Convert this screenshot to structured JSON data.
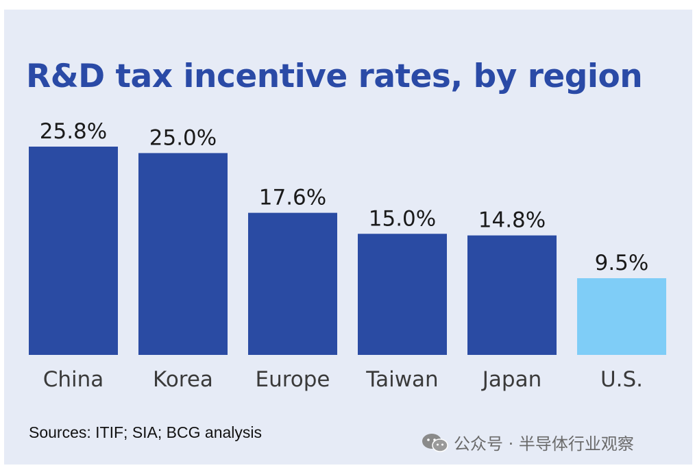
{
  "title": "R&D tax incentive rates, by region",
  "source": "Sources: ITIF; SIA; BCG analysis",
  "watermark": {
    "icon": "wechat-icon",
    "text": "公众号 · 半导体行业观察"
  },
  "chart_data": {
    "type": "bar",
    "title": "R&D tax incentive rates, by region",
    "xlabel": "",
    "ylabel": "",
    "categories": [
      "China",
      "Korea",
      "Europe",
      "Taiwan",
      "Japan",
      "U.S."
    ],
    "values": [
      25.8,
      25.0,
      17.6,
      15.0,
      14.8,
      9.5
    ],
    "value_labels": [
      "25.8%",
      "25.0%",
      "17.6%",
      "15.0%",
      "14.8%",
      "9.5%"
    ],
    "unit": "%",
    "ylim": [
      0,
      25.8
    ],
    "grid": false,
    "legend": "none",
    "colors": {
      "primary": "#2a4ba3",
      "highlight": "#7fcdf7",
      "highlight_category": "U.S."
    }
  }
}
